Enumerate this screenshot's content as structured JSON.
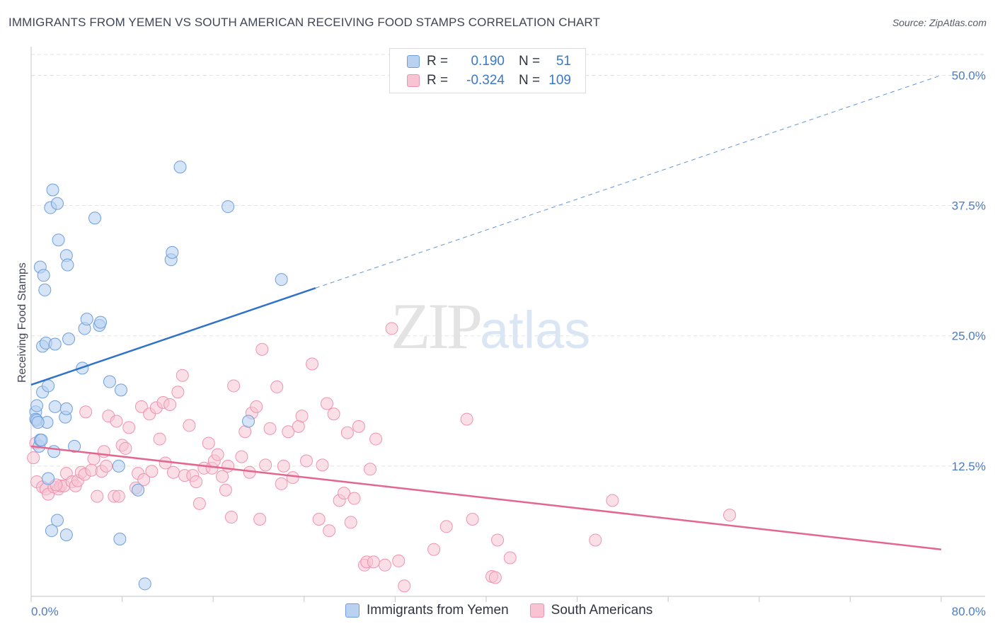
{
  "title": "IMMIGRANTS FROM YEMEN VS SOUTH AMERICAN RECEIVING FOOD STAMPS CORRELATION CHART",
  "source": "Source: ZipAtlas.com",
  "watermark": {
    "part1": "ZIP",
    "part2": "atlas"
  },
  "legend": {
    "rows": [
      {
        "r_label": "R =",
        "r_value": "0.190",
        "n_label": "N =",
        "n_value": "51"
      },
      {
        "r_label": "R =",
        "r_value": "-0.324",
        "n_label": "N =",
        "n_value": "109"
      }
    ]
  },
  "bottom_legend": [
    "Immigrants from Yemen",
    "South Americans"
  ],
  "colors": {
    "blue_fill": "#b9d2f2",
    "blue_stroke": "#6e9fdc",
    "blue_line": "#2f72c8",
    "pink_fill": "#f8c4d4",
    "pink_stroke": "#ee93b1",
    "pink_line": "#e4668f",
    "grid": "#e3e3e3",
    "tick_text": "#4a7cc4"
  },
  "chart_data": {
    "type": "scatter",
    "title": "IMMIGRANTS FROM YEMEN VS SOUTH AMERICAN RECEIVING FOOD STAMPS CORRELATION CHART",
    "xlabel": "",
    "ylabel": "Receiving Food Stamps",
    "xlim": [
      0,
      80
    ],
    "ylim": [
      0,
      52
    ],
    "x_ticks": [
      "0.0%",
      "80.0%"
    ],
    "y_ticks": [
      "12.5%",
      "25.0%",
      "37.5%",
      "50.0%"
    ],
    "y_tick_values": [
      12.5,
      25.0,
      37.5,
      50.0
    ],
    "grid": true,
    "legend_position": "top-center",
    "series": [
      {
        "name": "Immigrants from Yemen",
        "points": [
          [
            0.4,
            17.7
          ],
          [
            0.4,
            17.0
          ],
          [
            0.5,
            18.3
          ],
          [
            0.5,
            16.9
          ],
          [
            0.7,
            14.4
          ],
          [
            0.8,
            15.0
          ],
          [
            0.8,
            31.6
          ],
          [
            1.0,
            19.6
          ],
          [
            1.0,
            24.0
          ],
          [
            1.1,
            30.8
          ],
          [
            1.2,
            29.4
          ],
          [
            1.3,
            24.3
          ],
          [
            1.4,
            16.7
          ],
          [
            1.5,
            20.2
          ],
          [
            1.5,
            11.3
          ],
          [
            1.7,
            37.3
          ],
          [
            1.8,
            6.3
          ],
          [
            1.9,
            39.0
          ],
          [
            2.0,
            13.9
          ],
          [
            2.1,
            24.2
          ],
          [
            2.1,
            18.2
          ],
          [
            2.3,
            37.7
          ],
          [
            2.3,
            7.3
          ],
          [
            2.4,
            34.2
          ],
          [
            3.0,
            17.2
          ],
          [
            3.1,
            18.0
          ],
          [
            3.1,
            32.7
          ],
          [
            3.1,
            5.9
          ],
          [
            3.2,
            31.8
          ],
          [
            3.3,
            24.7
          ],
          [
            3.8,
            14.4
          ],
          [
            4.5,
            21.9
          ],
          [
            4.7,
            25.7
          ],
          [
            4.9,
            26.6
          ],
          [
            5.6,
            36.3
          ],
          [
            6.0,
            26.0
          ],
          [
            6.1,
            26.3
          ],
          [
            6.9,
            20.6
          ],
          [
            7.7,
            12.5
          ],
          [
            7.8,
            5.5
          ],
          [
            7.9,
            19.8
          ],
          [
            9.4,
            10.2
          ],
          [
            10.0,
            1.2
          ],
          [
            12.3,
            32.3
          ],
          [
            12.4,
            33.0
          ],
          [
            13.1,
            41.2
          ],
          [
            17.3,
            37.4
          ],
          [
            19.1,
            16.8
          ],
          [
            22.0,
            30.4
          ],
          [
            0.6,
            16.7
          ],
          [
            0.9,
            15.0
          ]
        ]
      },
      {
        "name": "South Americans",
        "points": [
          [
            0.2,
            13.3
          ],
          [
            0.4,
            14.7
          ],
          [
            0.5,
            11.0
          ],
          [
            1.0,
            10.5
          ],
          [
            1.3,
            10.3
          ],
          [
            1.5,
            9.8
          ],
          [
            2.0,
            10.5
          ],
          [
            2.4,
            10.3
          ],
          [
            2.6,
            10.6
          ],
          [
            2.9,
            10.6
          ],
          [
            3.1,
            11.8
          ],
          [
            3.6,
            11.0
          ],
          [
            3.9,
            10.6
          ],
          [
            4.1,
            11.1
          ],
          [
            4.4,
            11.9
          ],
          [
            4.7,
            11.7
          ],
          [
            4.8,
            17.7
          ],
          [
            5.3,
            12.1
          ],
          [
            5.5,
            13.2
          ],
          [
            5.8,
            9.6
          ],
          [
            6.2,
            12.0
          ],
          [
            6.4,
            13.9
          ],
          [
            6.6,
            12.5
          ],
          [
            6.8,
            17.3
          ],
          [
            7.3,
            9.6
          ],
          [
            7.5,
            16.8
          ],
          [
            7.7,
            9.6
          ],
          [
            8.0,
            14.5
          ],
          [
            8.3,
            14.2
          ],
          [
            8.6,
            16.2
          ],
          [
            9.2,
            10.4
          ],
          [
            9.4,
            11.8
          ],
          [
            9.7,
            18.2
          ],
          [
            9.9,
            11.2
          ],
          [
            10.4,
            17.5
          ],
          [
            10.6,
            12.0
          ],
          [
            11.0,
            18.1
          ],
          [
            11.3,
            15.1
          ],
          [
            11.6,
            18.6
          ],
          [
            11.8,
            12.8
          ],
          [
            12.2,
            18.4
          ],
          [
            12.5,
            11.9
          ],
          [
            12.9,
            19.6
          ],
          [
            13.3,
            21.2
          ],
          [
            13.5,
            11.6
          ],
          [
            13.9,
            16.4
          ],
          [
            14.2,
            11.6
          ],
          [
            14.5,
            11.0
          ],
          [
            14.8,
            8.9
          ],
          [
            15.2,
            12.3
          ],
          [
            15.6,
            14.7
          ],
          [
            15.9,
            12.3
          ],
          [
            16.1,
            13.0
          ],
          [
            16.4,
            13.6
          ],
          [
            16.8,
            11.5
          ],
          [
            17.1,
            10.2
          ],
          [
            17.3,
            12.5
          ],
          [
            17.6,
            7.6
          ],
          [
            17.8,
            20.2
          ],
          [
            18.5,
            13.4
          ],
          [
            18.8,
            15.8
          ],
          [
            19.2,
            11.9
          ],
          [
            19.4,
            17.6
          ],
          [
            19.8,
            18.2
          ],
          [
            20.1,
            7.4
          ],
          [
            20.3,
            23.7
          ],
          [
            20.6,
            12.6
          ],
          [
            21.0,
            16.1
          ],
          [
            21.6,
            20.1
          ],
          [
            22.0,
            10.8
          ],
          [
            22.2,
            12.5
          ],
          [
            22.6,
            15.8
          ],
          [
            23.0,
            11.4
          ],
          [
            23.5,
            16.3
          ],
          [
            23.8,
            17.3
          ],
          [
            24.2,
            13.0
          ],
          [
            24.7,
            22.3
          ],
          [
            25.3,
            7.4
          ],
          [
            25.6,
            12.6
          ],
          [
            26.0,
            18.5
          ],
          [
            26.2,
            6.3
          ],
          [
            26.6,
            17.5
          ],
          [
            27.1,
            9.2
          ],
          [
            27.5,
            9.9
          ],
          [
            27.8,
            15.7
          ],
          [
            28.1,
            7.1
          ],
          [
            28.4,
            9.4
          ],
          [
            28.8,
            16.3
          ],
          [
            29.3,
            3.0
          ],
          [
            29.5,
            3.3
          ],
          [
            29.8,
            12.2
          ],
          [
            30.1,
            3.3
          ],
          [
            30.3,
            15.1
          ],
          [
            31.1,
            3.0
          ],
          [
            31.7,
            25.7
          ],
          [
            32.3,
            3.4
          ],
          [
            32.8,
            1.0
          ],
          [
            35.4,
            4.5
          ],
          [
            36.5,
            6.7
          ],
          [
            38.3,
            17.0
          ],
          [
            38.8,
            7.4
          ],
          [
            40.5,
            1.9
          ],
          [
            40.8,
            1.8
          ],
          [
            41.0,
            5.4
          ],
          [
            42.1,
            3.7
          ],
          [
            49.6,
            5.4
          ],
          [
            51.1,
            9.2
          ],
          [
            61.4,
            7.8
          ],
          [
            2.2,
            10.7
          ]
        ]
      }
    ],
    "trend_lines": [
      {
        "series": "Immigrants from Yemen",
        "solid_x": [
          0,
          25
        ],
        "dashed_x": [
          25,
          80
        ],
        "y_at_0": 20.3,
        "y_at_80": 50.0
      },
      {
        "series": "South Americans",
        "solid_x": [
          0,
          80
        ],
        "y_at_0": 14.4,
        "y_at_80": 4.5
      }
    ]
  }
}
